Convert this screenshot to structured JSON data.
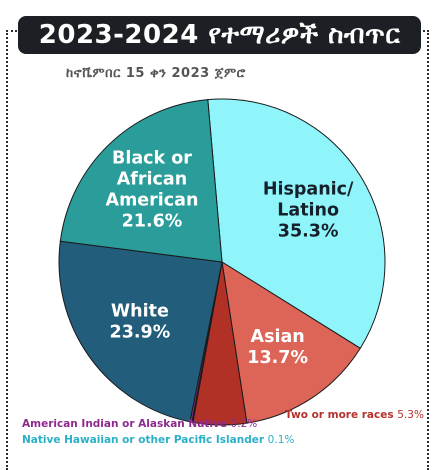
{
  "chart_data": {
    "type": "pie",
    "title": "2023-2024 የተማሪዎች ስብጥር",
    "subtitle": "ከኖቬምበር 15 ቀን 2023 ጀምሮ",
    "slices": [
      {
        "name": "Hispanic/ Latino",
        "lines": [
          "Hispanic/",
          "Latino"
        ],
        "value": 35.3,
        "value_label": "35.3%",
        "color": "#8ff5fb"
      },
      {
        "name": "Asian",
        "lines": [
          "Asian"
        ],
        "value": 13.7,
        "value_label": "13.7%",
        "color": "#dd6558"
      },
      {
        "name": "Two or more races",
        "lines": [],
        "value": 5.3,
        "value_label": "5.3%",
        "color": "#b23127"
      },
      {
        "name": "Native Hawaiian or other Pacific Islander",
        "lines": [],
        "value": 0.1,
        "value_label": "0.1%",
        "color": "#2ab0c6"
      },
      {
        "name": "American Indian or Alaskan Native",
        "lines": [],
        "value": 0.2,
        "value_label": "0.2%",
        "color": "#8e2a8e"
      },
      {
        "name": "White",
        "lines": [
          "White"
        ],
        "value": 23.9,
        "value_label": "23.9%",
        "color": "#235d7c"
      },
      {
        "name": "Black or African American",
        "lines": [
          "Black or",
          "African",
          "American"
        ],
        "value": 21.6,
        "value_label": "21.6%",
        "color": "#2a9d9a"
      }
    ],
    "footnotes": {
      "american_indian": {
        "label": "American Indian or Alaskan Native",
        "value": "0.2%"
      },
      "native_hawaiian": {
        "label": "Native Hawaiian or other Pacific Islander",
        "value": "0.1%"
      },
      "two_or_more": {
        "label": "Two or more races",
        "value": "5.3%"
      }
    }
  }
}
